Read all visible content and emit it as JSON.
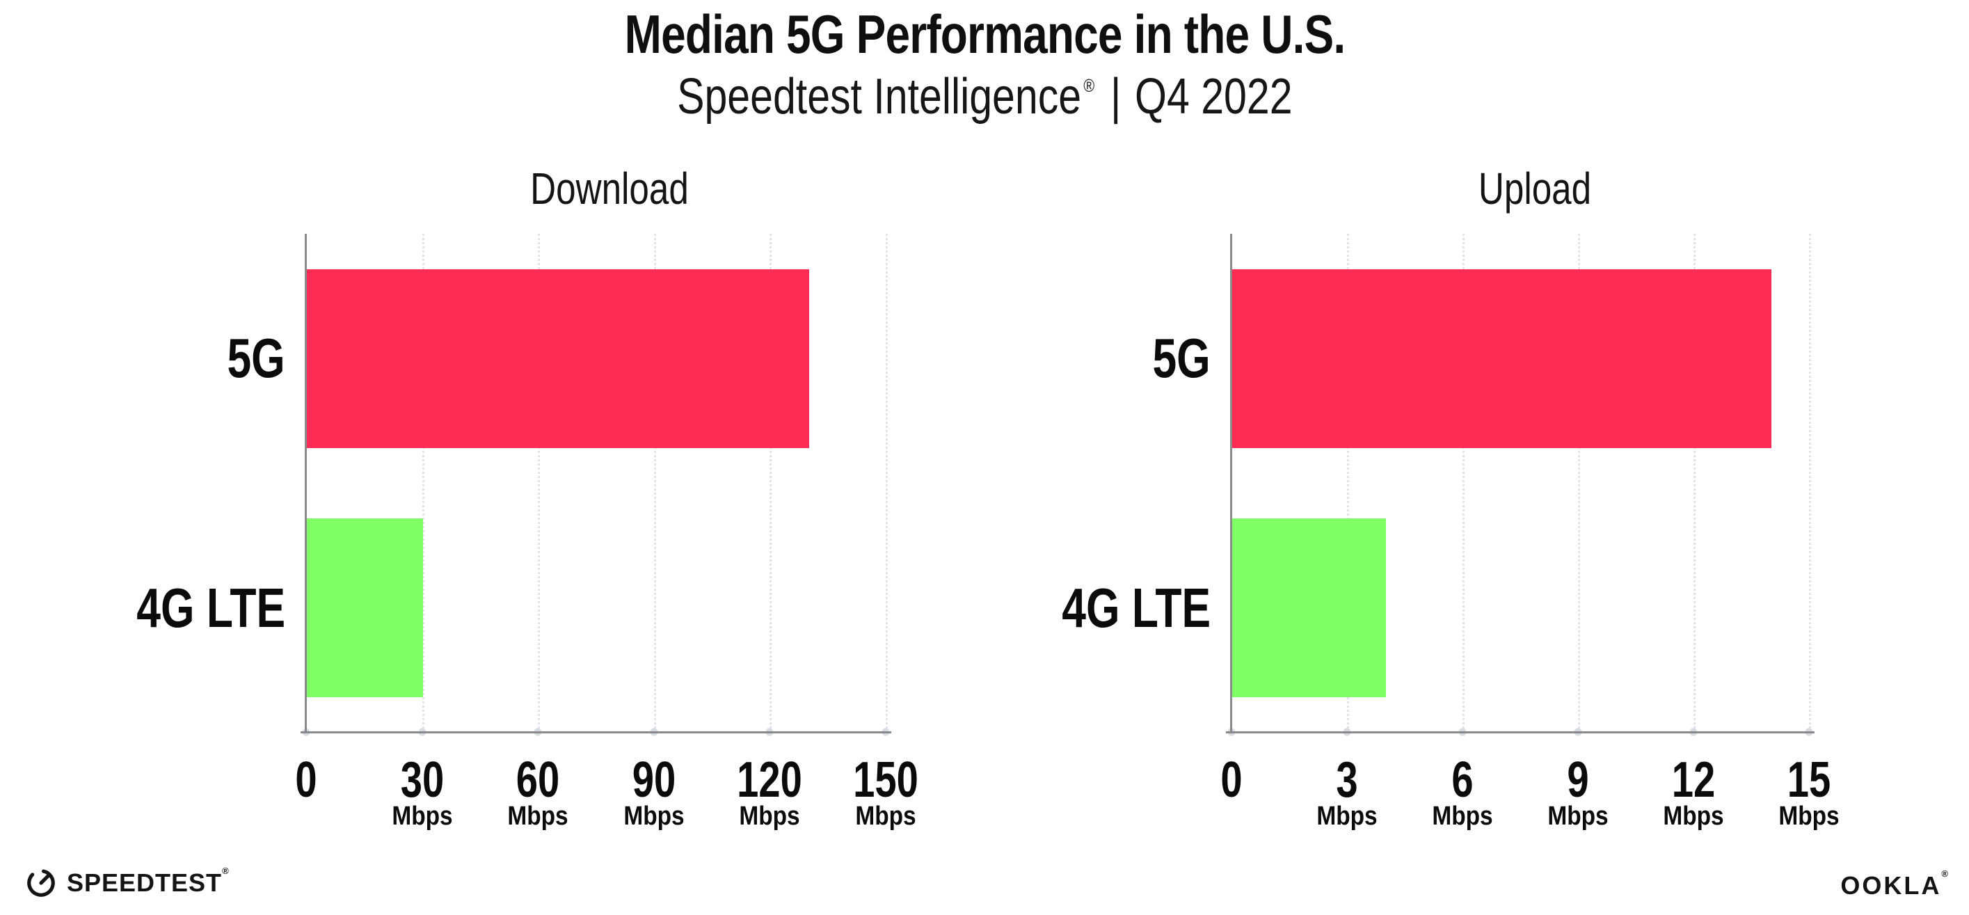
{
  "header": {
    "title": "Median 5G Performance in the U.S.",
    "subtitle": {
      "brand": "Speedtest Intelligence",
      "registered": "®",
      "separator": "|",
      "period": "Q4 2022"
    }
  },
  "chart_data": [
    {
      "type": "bar",
      "orientation": "horizontal",
      "title": "Download",
      "categories": [
        "5G",
        "4G LTE"
      ],
      "values": [
        130,
        30
      ],
      "unit": "Mbps",
      "xlim": [
        0,
        150
      ],
      "xticks": [
        0,
        30,
        60,
        90,
        120,
        150
      ],
      "bar_colors": [
        "#FF2D55",
        "#80FF66"
      ],
      "grid": "vertical-dotted",
      "legend": "none"
    },
    {
      "type": "bar",
      "orientation": "horizontal",
      "title": "Upload",
      "categories": [
        "5G",
        "4G LTE"
      ],
      "values": [
        14,
        4
      ],
      "unit": "Mbps",
      "xlim": [
        0,
        15
      ],
      "xticks": [
        0,
        3,
        6,
        9,
        12,
        15
      ],
      "bar_colors": [
        "#FF2D55",
        "#80FF66"
      ],
      "grid": "vertical-dotted",
      "legend": "none"
    }
  ],
  "colors": {
    "bar_5g": "#FF2D55",
    "bar_4g_lte": "#80FF66",
    "axis": "#8A8A8A",
    "gridline": "#E1E2EC",
    "text": "#0F0F0F"
  },
  "footer": {
    "speedtest": "SPEEDTEST",
    "speedtest_mark": "®",
    "ookla": "OOKLA",
    "ookla_mark": "®"
  }
}
